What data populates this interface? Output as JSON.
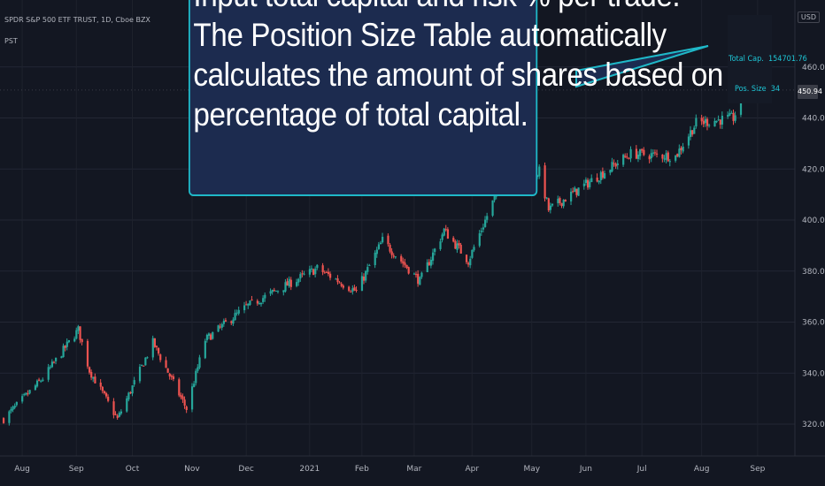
{
  "header": {
    "title": "SPDR S&P 500 ETF TRUST, 1D, Cboe BZX",
    "indicator": "PST",
    "currency": "USD"
  },
  "callout": {
    "lines": [
      "Input total capital and risk % per trade.",
      "The Position Size Table automatically",
      "calculates the amount of shares based on",
      "percentage of total capital."
    ]
  },
  "position_table": {
    "total_cap_label": "Total Cap.",
    "total_cap_value": "154701.76",
    "pos_size_label": "Pos. Size",
    "pos_size_value": "34"
  },
  "last_price": "450.94",
  "colors": {
    "background": "#131722",
    "up": "#26a69a",
    "down": "#ef5350",
    "callout_border": "#1fb8c8",
    "callout_fill": "#1c2b4f",
    "table_text": "#1ec6d6"
  },
  "chart_data": {
    "type": "candlestick",
    "title": "SPDR S&P 500 ETF TRUST, 1D, Cboe BZX",
    "ylim": [
      312,
      472
    ],
    "y_ticks": [
      320,
      340,
      360,
      380,
      400,
      420,
      440,
      460
    ],
    "x_ticks": [
      "Aug",
      "Sep",
      "Oct",
      "Nov",
      "Dec",
      "2021",
      "Feb",
      "Mar",
      "Apr",
      "May",
      "Jun",
      "Jul",
      "Aug",
      "Sep"
    ],
    "grid": true,
    "anchors": [
      {
        "date": "Jul 24",
        "close": 322
      },
      {
        "date": "Aug 14",
        "close": 338
      },
      {
        "date": "Sep 2",
        "close": 357
      },
      {
        "date": "Sep 8",
        "close": 341
      },
      {
        "date": "Sep 23",
        "close": 322
      },
      {
        "date": "Oct 12",
        "close": 352
      },
      {
        "date": "Oct 30",
        "close": 326
      },
      {
        "date": "Nov 9",
        "close": 353
      },
      {
        "date": "Dec 1",
        "close": 366
      },
      {
        "date": "Jan 8",
        "close": 381
      },
      {
        "date": "Jan 29",
        "close": 372
      },
      {
        "date": "Feb 12",
        "close": 392
      },
      {
        "date": "Mar 4",
        "close": 376
      },
      {
        "date": "Mar 17",
        "close": 396
      },
      {
        "date": "Mar 30",
        "close": 384
      },
      {
        "date": "Apr 16",
        "close": 414
      },
      {
        "date": "May 7",
        "close": 419
      },
      {
        "date": "May 12",
        "close": 404
      },
      {
        "date": "Jun 25",
        "close": 426
      },
      {
        "date": "Jul 19",
        "close": 425
      },
      {
        "date": "Jul 30",
        "close": 438
      },
      {
        "date": "Aug 19",
        "close": 440
      },
      {
        "date": "Aug 24",
        "close": 448
      },
      {
        "date": "Sep 2",
        "close": 450.94
      }
    ]
  }
}
